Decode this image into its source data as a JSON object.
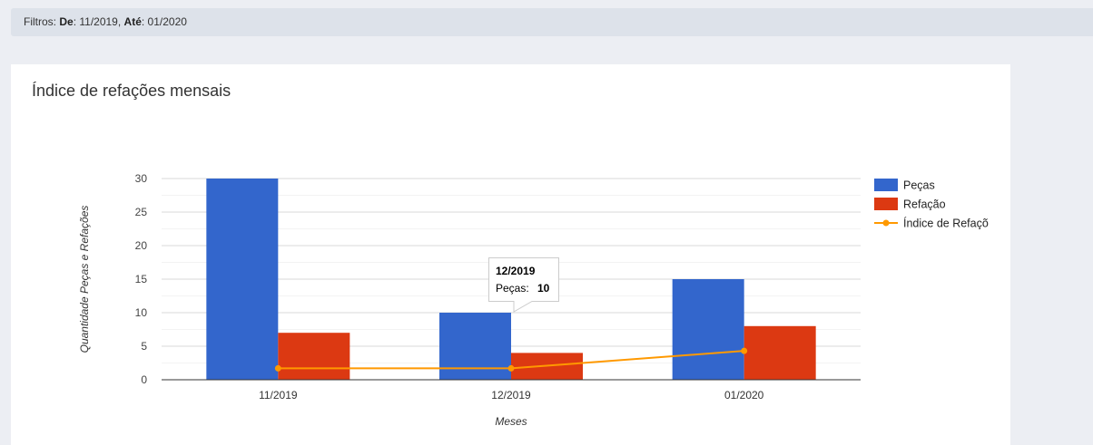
{
  "filters": {
    "prefix": "Filtros:",
    "from_label": "De",
    "from_value": "11/2019",
    "to_label": "Até",
    "to_value": "01/2020"
  },
  "card": {
    "title": "Índice de refações mensais"
  },
  "tooltip": {
    "title": "12/2019",
    "label": "Peças:",
    "value": "10"
  },
  "chart_data": {
    "type": "bar",
    "categories": [
      "11/2019",
      "12/2019",
      "01/2020"
    ],
    "series": [
      {
        "name": "Peças",
        "type": "bar",
        "color": "#3366cc",
        "values": [
          30,
          10,
          15
        ]
      },
      {
        "name": "Refação",
        "type": "bar",
        "color": "#dc3912",
        "values": [
          7,
          4,
          8
        ]
      },
      {
        "name": "Índice de Refações",
        "type": "line",
        "color": "#ff9900",
        "values": [
          1.7,
          1.7,
          4.3
        ]
      }
    ],
    "xlabel": "Meses",
    "ylabel": "Quantidade Peças e Refações",
    "ylim": [
      0,
      30
    ],
    "yticks": [
      "0",
      "5",
      "10",
      "15",
      "20",
      "25",
      "30"
    ],
    "grid": true,
    "legend_position": "right"
  }
}
